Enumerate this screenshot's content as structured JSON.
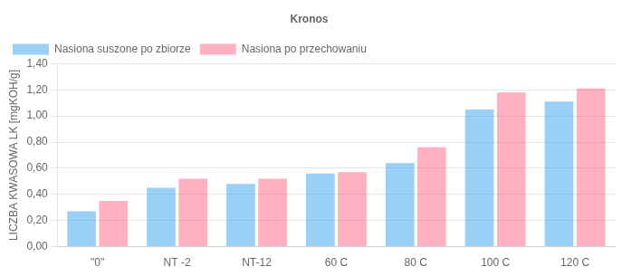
{
  "chart_data": {
    "type": "bar",
    "title": "Kronos",
    "categories": [
      "\"0\"",
      "NT -2",
      "NT-12",
      "60 C",
      "80 C",
      "100 C",
      "120 C"
    ],
    "series": [
      {
        "name": "Nasiona suszone po zbiorze",
        "values": [
          0.27,
          0.45,
          0.48,
          0.56,
          0.64,
          1.05,
          1.11
        ]
      },
      {
        "name": "Nasiona po przechowaniu",
        "values": [
          0.35,
          0.52,
          0.52,
          0.57,
          0.76,
          1.18,
          1.21
        ]
      }
    ],
    "ylabel": "LICZBA KWASOWA LK [mgKOH/g]",
    "ylim": [
      0,
      1.4
    ],
    "yticks": [
      {
        "value": 0.0,
        "label": "0,00"
      },
      {
        "value": 0.2,
        "label": "0,20"
      },
      {
        "value": 0.4,
        "label": "0,40"
      },
      {
        "value": 0.6,
        "label": "0,60"
      },
      {
        "value": 0.8,
        "label": "0,80"
      },
      {
        "value": 1.0,
        "label": "1,00"
      },
      {
        "value": 1.2,
        "label": "1,20"
      },
      {
        "value": 1.4,
        "label": "1,40"
      }
    ],
    "grid": true,
    "legend": "upper left"
  }
}
